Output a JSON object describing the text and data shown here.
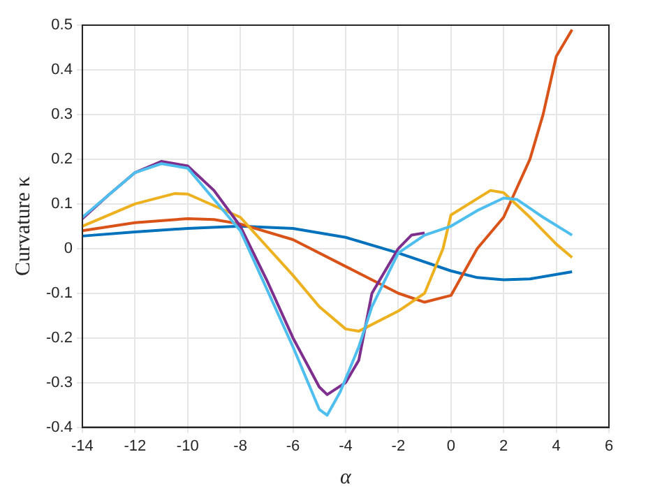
{
  "chart_data": {
    "type": "line",
    "xlabel": "α",
    "ylabel": "Curvature κ",
    "xlim": [
      -14,
      6
    ],
    "ylim": [
      -0.4,
      0.5
    ],
    "xticks": [
      -14,
      -12,
      -10,
      -8,
      -6,
      -4,
      -2,
      0,
      2,
      4,
      6
    ],
    "yticks": [
      -0.4,
      -0.3,
      -0.2,
      -0.1,
      0,
      0.1,
      0.2,
      0.3,
      0.4,
      0.5
    ],
    "grid": true,
    "legend": false,
    "marker": "none",
    "line_style": "solid",
    "series": [
      {
        "color": "#0072bd",
        "x": [
          -14,
          -12,
          -10,
          -8,
          -6,
          -4,
          -2,
          0,
          1,
          2,
          3,
          4.6
        ],
        "values": [
          0.028,
          0.037,
          0.045,
          0.05,
          0.045,
          0.025,
          -0.01,
          -0.05,
          -0.065,
          -0.07,
          -0.068,
          -0.052
        ]
      },
      {
        "color": "#d95319",
        "x": [
          -14,
          -12,
          -10,
          -9,
          -8,
          -6,
          -4,
          -2,
          -1,
          0,
          1,
          2,
          3,
          3.5,
          4,
          4.6
        ],
        "values": [
          0.04,
          0.058,
          0.067,
          0.065,
          0.055,
          0.02,
          -0.04,
          -0.1,
          -0.12,
          -0.105,
          0,
          0.07,
          0.2,
          0.3,
          0.43,
          0.49
        ]
      },
      {
        "color": "#edb120",
        "x": [
          -14,
          -12,
          -10.5,
          -10,
          -8,
          -6,
          -5,
          -4,
          -3.5,
          -2,
          -1,
          -0.3,
          0,
          1.5,
          2,
          3,
          4,
          4.6
        ],
        "values": [
          0.05,
          0.1,
          0.123,
          0.122,
          0.07,
          -0.06,
          -0.13,
          -0.18,
          -0.185,
          -0.14,
          -0.1,
          0,
          0.075,
          0.13,
          0.125,
          0.07,
          0.01,
          -0.02
        ]
      },
      {
        "color": "#7e2f8e",
        "x": [
          -14,
          -13,
          -12,
          -11,
          -10,
          -9,
          -8,
          -7,
          -6,
          -5,
          -4.7,
          -4,
          -3.5,
          -3,
          -2,
          -1.5,
          -1
        ],
        "values": [
          0.067,
          0.12,
          0.17,
          0.195,
          0.185,
          0.13,
          0.05,
          -0.07,
          -0.2,
          -0.31,
          -0.327,
          -0.3,
          -0.25,
          -0.1,
          0,
          0.03,
          0.035
        ]
      },
      {
        "color": "#4dbeee",
        "x": [
          -14,
          -12,
          -11,
          -10,
          -8,
          -6,
          -5,
          -4.7,
          -4.2,
          -3.5,
          -3,
          -2,
          -1,
          0,
          1,
          2,
          2.5,
          3.5,
          4.6
        ],
        "values": [
          0.07,
          0.17,
          0.19,
          0.18,
          0.04,
          -0.22,
          -0.36,
          -0.373,
          -0.32,
          -0.22,
          -0.13,
          -0.01,
          0.03,
          0.05,
          0.085,
          0.113,
          0.11,
          0.07,
          0.03
        ]
      }
    ]
  }
}
